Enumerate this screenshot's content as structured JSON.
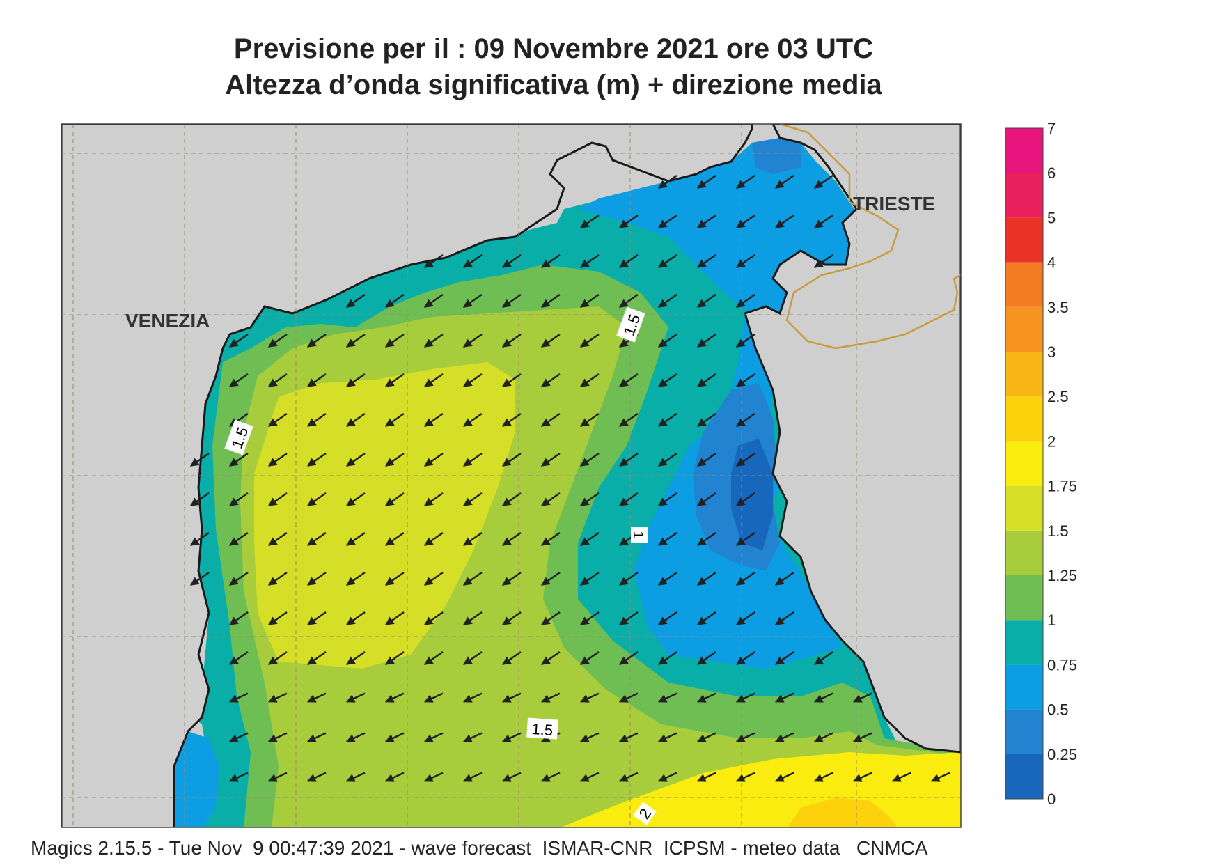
{
  "title": {
    "line1": "Previsione per il  :  09 Novembre  2021   ore 03 UTC",
    "line2": "Altezza d’onda significativa (m) + direzione media"
  },
  "map": {
    "city_labels": [
      "VENEZIA",
      "TRIESTE"
    ],
    "contour_labels": [
      "1.5",
      "1.5",
      "1.5",
      "1",
      "2"
    ],
    "colors": {
      "land": "#cfcfcf",
      "coast": "#1a1a1a",
      "border": "#c89b3c",
      "grid": "#9a8a70",
      "arrow": "#222222"
    },
    "icons": [
      "wave-direction-arrow-icon"
    ]
  },
  "legend": {
    "levels": [
      "0",
      "0.25",
      "0.5",
      "0.75",
      "1",
      "1.25",
      "1.5",
      "1.75",
      "2",
      "2.5",
      "3",
      "3.5",
      "4",
      "5",
      "6",
      "7"
    ],
    "colors": [
      "#1767bd",
      "#2284d1",
      "#0c9de2",
      "#0aaea8",
      "#6ebe54",
      "#a7cd3c",
      "#d6df28",
      "#fbec0f",
      "#fbd20c",
      "#fab517",
      "#f79420",
      "#f37b22",
      "#eb3226",
      "#e8205b",
      "#e9157e"
    ]
  },
  "footer": "Magics 2.15.5 - Tue Nov  9 00:47:39 2021 - wave forecast  ISMAR-CNR  ICPSM - meteo data   CNMCA"
}
